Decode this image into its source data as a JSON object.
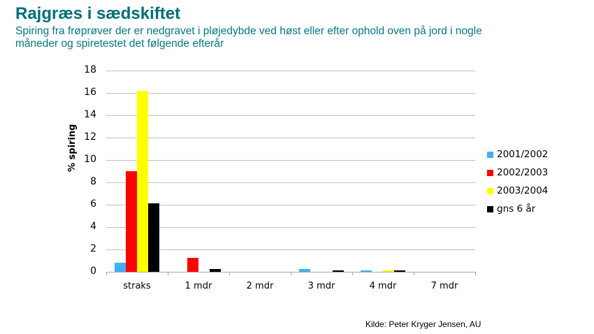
{
  "header": {
    "title": "Rajgræs i sædskiftet",
    "subtitle": "Spiring fra frøprøver der er nedgravet i pløjedybde ved høst eller efter ophold oven på jord i nogle måneder og spiretestet det følgende efterår"
  },
  "source": "Kilde: Peter Kryger Jensen, AU",
  "chart_data": {
    "type": "bar",
    "title": "Rajgræs i sædskiftet",
    "subtitle": "Spiring fra frøprøver der er nedgravet i pløjedybde ved høst eller efter ophold oven på jord i nogle måneder og spiretestet det følgende efterår",
    "xlabel": "",
    "ylabel": "% spiring",
    "ylim": [
      0,
      18
    ],
    "yticks": [
      0,
      2,
      4,
      6,
      8,
      10,
      12,
      14,
      16,
      18
    ],
    "grid": true,
    "legend_position": "right",
    "categories": [
      "straks",
      "1 mdr",
      "2 mdr",
      "3 mdr",
      "4 mdr",
      "7 mdr"
    ],
    "series": [
      {
        "name": "2001/2002",
        "color": "#3fb0f5",
        "values": [
          0.8,
          0,
          0,
          0.25,
          0.1,
          0
        ]
      },
      {
        "name": "2002/2003",
        "color": "#ff0000",
        "values": [
          9.0,
          1.25,
          0,
          0,
          0,
          0
        ]
      },
      {
        "name": "2003/2004",
        "color": "#ffff00",
        "values": [
          16.2,
          0,
          0,
          0,
          0.1,
          0
        ]
      },
      {
        "name": "gns 6 år",
        "color": "#000000",
        "values": [
          6.1,
          0.25,
          0,
          0.1,
          0.1,
          0
        ]
      }
    ]
  }
}
